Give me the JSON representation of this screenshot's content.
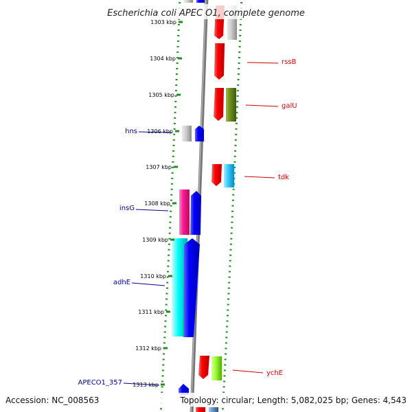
{
  "title": "Escherichia coli APEC O1, complete genome",
  "accession": "Accession: NC_008563",
  "topology": "Topology: circular; Length: 5,082,025 bp; Genes: 4,543",
  "colors": {
    "backbone": "#888888",
    "ring": "#228B22",
    "label_right": "#cc0000",
    "label_left": "#000099"
  },
  "ticks": [
    "1303 kbp",
    "1304 kbp",
    "1305 kbp",
    "1306 kbp",
    "1307 kbp",
    "1308 kbp",
    "1309 kbp",
    "1310 kbp",
    "1311 kbp",
    "1312 kbp",
    "1313 kbp"
  ],
  "gene_labels": [
    {
      "text": "rssB",
      "side": "right"
    },
    {
      "text": "galU",
      "side": "right"
    },
    {
      "text": "hns",
      "side": "left"
    },
    {
      "text": "tdk",
      "side": "right"
    },
    {
      "text": "insG",
      "side": "left"
    },
    {
      "text": "adhE",
      "side": "left"
    },
    {
      "text": "ychE",
      "side": "right"
    },
    {
      "text": "APECO1_357",
      "side": "left"
    }
  ]
}
